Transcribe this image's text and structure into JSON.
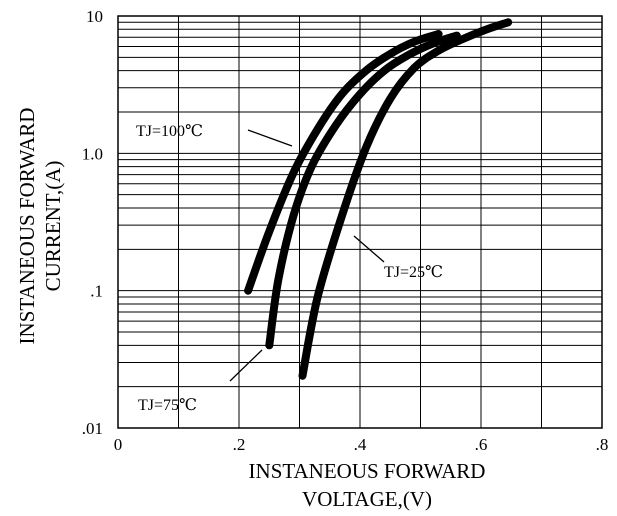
{
  "chart_data": {
    "type": "line",
    "title": "",
    "xlabel_lines": [
      "INSTANEOUS FORWARD",
      "VOLTAGE,(V)"
    ],
    "ylabel_lines": [
      "INSTANEOUS FORWARD",
      "CURRENT,(A)"
    ],
    "x_scale": "linear",
    "y_scale": "log",
    "xlim": [
      0,
      0.8
    ],
    "ylim": [
      0.01,
      10
    ],
    "x_ticks": [
      {
        "value": 0,
        "label": "0"
      },
      {
        "value": 0.2,
        "label": ".2"
      },
      {
        "value": 0.4,
        "label": ".4"
      },
      {
        "value": 0.6,
        "label": ".6"
      },
      {
        "value": 0.8,
        "label": ".8"
      }
    ],
    "y_ticks": [
      {
        "value": 0.01,
        "label": ".01"
      },
      {
        "value": 0.1,
        "label": ".1"
      },
      {
        "value": 1,
        "label": "1.0"
      },
      {
        "value": 10,
        "label": "10"
      }
    ],
    "grid": true,
    "series": [
      {
        "name": "TJ=100℃",
        "x": [
          0.215,
          0.25,
          0.29,
          0.33,
          0.37,
          0.41,
          0.45,
          0.49,
          0.53
        ],
        "y": [
          0.1,
          0.27,
          0.72,
          1.5,
          2.7,
          4.0,
          5.3,
          6.5,
          7.4
        ]
      },
      {
        "name": "TJ=75℃",
        "x": [
          0.25,
          0.265,
          0.29,
          0.32,
          0.36,
          0.4,
          0.44,
          0.48,
          0.52,
          0.56
        ],
        "y": [
          0.04,
          0.12,
          0.35,
          0.8,
          1.6,
          2.7,
          4.0,
          5.2,
          6.3,
          7.2
        ]
      },
      {
        "name": "TJ=25℃",
        "x": [
          0.305,
          0.33,
          0.37,
          0.41,
          0.45,
          0.49,
          0.53,
          0.57,
          0.61,
          0.645
        ],
        "y": [
          0.024,
          0.09,
          0.35,
          1.1,
          2.5,
          4.2,
          5.6,
          6.8,
          8.0,
          9.0
        ]
      }
    ],
    "annotations": [
      {
        "text": "TJ=100℃",
        "series": 0
      },
      {
        "text": "TJ=75℃",
        "series": 1
      },
      {
        "text": "TJ=25℃",
        "series": 2
      }
    ]
  }
}
